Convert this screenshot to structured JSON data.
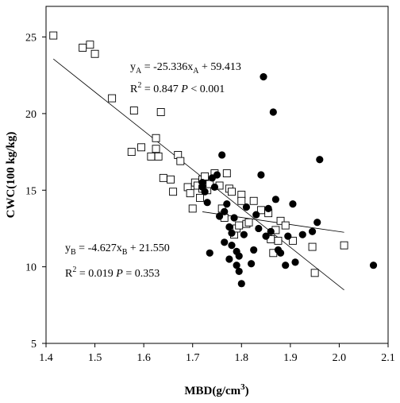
{
  "chart_data": {
    "type": "scatter",
    "xlabel": "MBD(g/cm",
    "xlabel_sup": "3",
    "xlabel_close": ")",
    "ylabel": "CWC(100 kg/kg)",
    "xlim": [
      1.4,
      2.1
    ],
    "ylim": [
      5,
      27
    ],
    "xticks": [
      "1.4",
      "1.5",
      "1.6",
      "1.7",
      "1.8",
      "1.9",
      "2.0",
      "2.1"
    ],
    "yticks": [
      "5",
      "10",
      "15",
      "20",
      "25"
    ],
    "series": [
      {
        "marker": "open-square",
        "points": [
          [
            1.415,
            25.1
          ],
          [
            1.475,
            24.3
          ],
          [
            1.49,
            24.5
          ],
          [
            1.5,
            23.9
          ],
          [
            1.535,
            21.0
          ],
          [
            1.58,
            20.2
          ],
          [
            1.575,
            17.5
          ],
          [
            1.595,
            17.8
          ],
          [
            1.615,
            17.2
          ],
          [
            1.625,
            18.4
          ],
          [
            1.625,
            17.7
          ],
          [
            1.63,
            17.2
          ],
          [
            1.635,
            20.1
          ],
          [
            1.64,
            15.8
          ],
          [
            1.655,
            15.7
          ],
          [
            1.66,
            14.9
          ],
          [
            1.67,
            17.3
          ],
          [
            1.675,
            16.9
          ],
          [
            1.69,
            15.2
          ],
          [
            1.695,
            14.8
          ],
          [
            1.7,
            13.8
          ],
          [
            1.705,
            15.5
          ],
          [
            1.71,
            15.3
          ],
          [
            1.715,
            14.5
          ],
          [
            1.72,
            15.1
          ],
          [
            1.72,
            15.7
          ],
          [
            1.725,
            15.9
          ],
          [
            1.73,
            15.0
          ],
          [
            1.735,
            15.4
          ],
          [
            1.745,
            16.1
          ],
          [
            1.755,
            15.3
          ],
          [
            1.76,
            13.8
          ],
          [
            1.765,
            13.2
          ],
          [
            1.77,
            16.1
          ],
          [
            1.775,
            15.1
          ],
          [
            1.78,
            14.9
          ],
          [
            1.785,
            12.1
          ],
          [
            1.79,
            12.5
          ],
          [
            1.795,
            12.7
          ],
          [
            1.8,
            14.7
          ],
          [
            1.8,
            14.3
          ],
          [
            1.81,
            12.8
          ],
          [
            1.815,
            12.9
          ],
          [
            1.825,
            14.3
          ],
          [
            1.84,
            13.7
          ],
          [
            1.855,
            13.5
          ],
          [
            1.86,
            11.8
          ],
          [
            1.865,
            10.9
          ],
          [
            1.87,
            12.4
          ],
          [
            1.875,
            11.7
          ],
          [
            1.88,
            13.0
          ],
          [
            1.89,
            12.7
          ],
          [
            1.905,
            11.7
          ],
          [
            1.945,
            11.3
          ],
          [
            1.95,
            9.6
          ],
          [
            2.01,
            11.4
          ]
        ]
      },
      {
        "marker": "filled-circle",
        "points": [
          [
            1.72,
            15.5
          ],
          [
            1.72,
            15.2
          ],
          [
            1.725,
            14.9
          ],
          [
            1.73,
            14.2
          ],
          [
            1.735,
            10.9
          ],
          [
            1.74,
            15.8
          ],
          [
            1.745,
            15.2
          ],
          [
            1.75,
            16.0
          ],
          [
            1.755,
            13.3
          ],
          [
            1.76,
            17.3
          ],
          [
            1.765,
            13.6
          ],
          [
            1.765,
            11.6
          ],
          [
            1.77,
            14.1
          ],
          [
            1.775,
            12.6
          ],
          [
            1.775,
            10.5
          ],
          [
            1.78,
            12.2
          ],
          [
            1.78,
            11.4
          ],
          [
            1.785,
            13.2
          ],
          [
            1.79,
            11.0
          ],
          [
            1.79,
            10.1
          ],
          [
            1.795,
            10.7
          ],
          [
            1.795,
            9.7
          ],
          [
            1.8,
            8.9
          ],
          [
            1.805,
            12.1
          ],
          [
            1.81,
            13.9
          ],
          [
            1.82,
            10.2
          ],
          [
            1.825,
            11.1
          ],
          [
            1.83,
            13.4
          ],
          [
            1.835,
            12.5
          ],
          [
            1.84,
            16.0
          ],
          [
            1.845,
            22.4
          ],
          [
            1.85,
            12.0
          ],
          [
            1.855,
            13.8
          ],
          [
            1.86,
            12.3
          ],
          [
            1.865,
            20.1
          ],
          [
            1.87,
            14.4
          ],
          [
            1.875,
            11.1
          ],
          [
            1.88,
            10.9
          ],
          [
            1.89,
            10.1
          ],
          [
            1.895,
            12.0
          ],
          [
            1.905,
            14.1
          ],
          [
            1.91,
            10.3
          ],
          [
            1.925,
            12.1
          ],
          [
            1.945,
            12.3
          ],
          [
            1.955,
            12.9
          ],
          [
            1.96,
            17.0
          ],
          [
            2.07,
            10.1
          ]
        ]
      }
    ],
    "fit_lines": [
      {
        "slope": -25.336,
        "intercept": 59.413,
        "x_range": [
          1.415,
          2.01
        ]
      },
      {
        "slope": -4.627,
        "intercept": 21.55,
        "x_range": [
          1.72,
          2.01
        ]
      }
    ],
    "annotations": {
      "eqA": {
        "y": "y",
        "y_sub": "A",
        "rest": " = -25.336x",
        "x_sub": "A",
        "tail": " + 59.413"
      },
      "r2A": {
        "r": "R",
        "sup": "2",
        "value": " = 0.847 ",
        "p": "P",
        "p_tail": " < 0.001"
      },
      "eqB": {
        "y": "y",
        "y_sub": "B",
        "rest": " = -4.627x",
        "x_sub": "B",
        "tail": " + 21.550"
      },
      "r2B": {
        "r": "R",
        "sup": "2",
        "value": " = 0.019 ",
        "p": "P",
        "p_tail": " = 0.353"
      }
    }
  }
}
